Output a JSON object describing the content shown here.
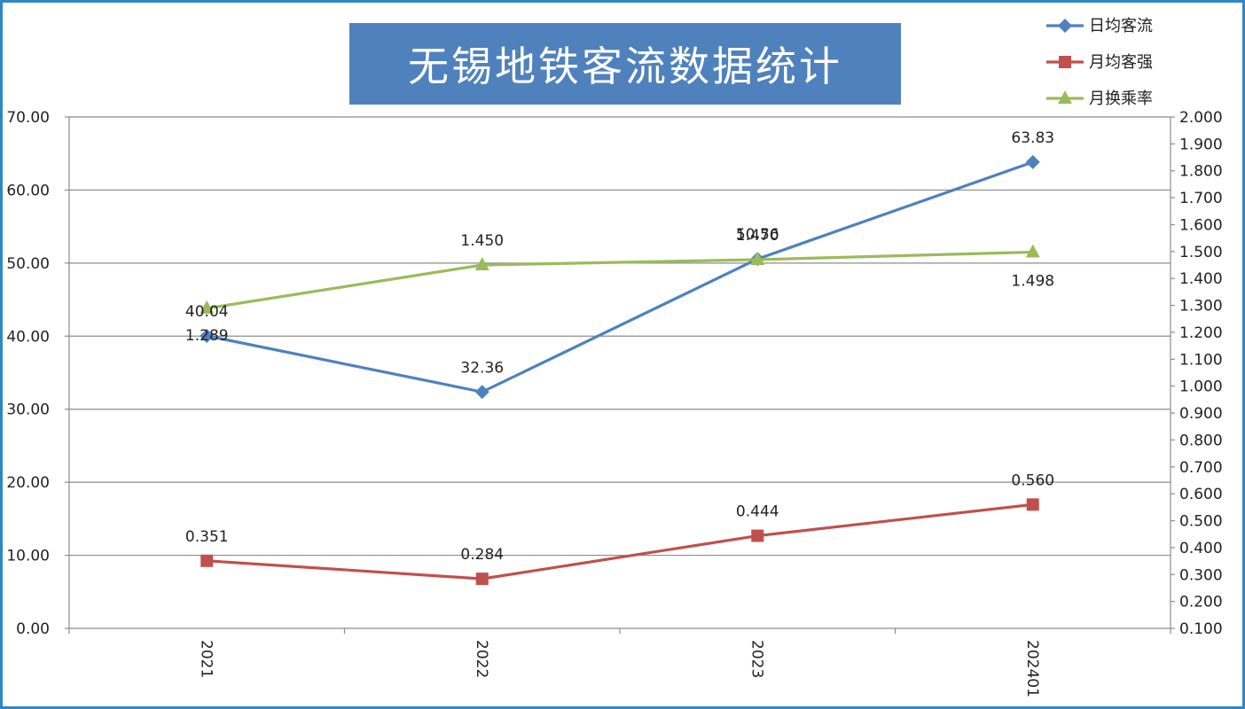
{
  "chart_data": {
    "type": "line",
    "title": "无锡地铁客流数据统计",
    "categories": [
      "2021",
      "2022",
      "2023",
      "202401"
    ],
    "y_left": {
      "lim": [
        0,
        70
      ],
      "step": 10,
      "ticks": [
        "0.00",
        "10.00",
        "20.00",
        "30.00",
        "40.00",
        "50.00",
        "60.00",
        "70.00"
      ]
    },
    "y_right": {
      "lim": [
        0.1,
        2.0
      ],
      "step": 0.1,
      "ticks": [
        "0.100",
        "0.200",
        "0.300",
        "0.400",
        "0.500",
        "0.600",
        "0.700",
        "0.800",
        "0.900",
        "1.000",
        "1.100",
        "1.200",
        "1.300",
        "1.400",
        "1.500",
        "1.600",
        "1.700",
        "1.800",
        "1.900",
        "2.000"
      ]
    },
    "grid": true,
    "legend_position": "top-right",
    "series": [
      {
        "name": "日均客流",
        "axis": "left",
        "marker": "diamond",
        "color": "#4f81bd",
        "values": [
          40.04,
          32.36,
          50.56,
          63.83
        ],
        "labels": [
          "40.04",
          "32.36",
          "50.56",
          "63.83"
        ]
      },
      {
        "name": "月均客强",
        "axis": "right",
        "marker": "square",
        "color": "#c0504d",
        "values": [
          0.351,
          0.284,
          0.444,
          0.56
        ],
        "labels": [
          "0.351",
          "0.284",
          "0.444",
          "0.560"
        ]
      },
      {
        "name": "月换乘率",
        "axis": "right",
        "marker": "triangle",
        "color": "#9bbb59",
        "values": [
          1.289,
          1.45,
          1.47,
          1.498
        ],
        "labels": [
          "1.289",
          "1.450",
          "1.470",
          "1.498"
        ]
      }
    ]
  }
}
